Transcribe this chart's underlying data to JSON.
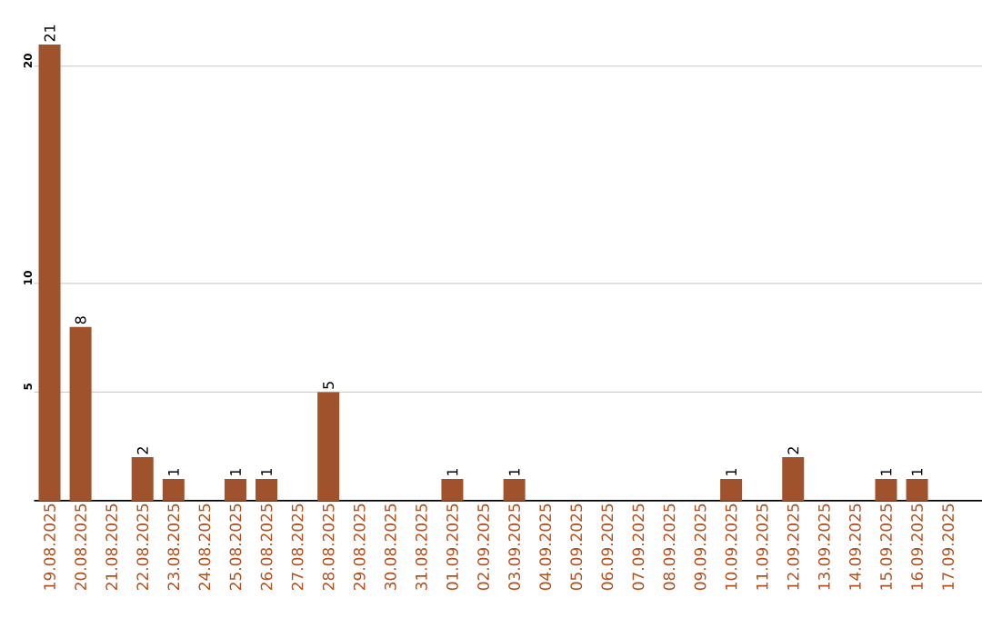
{
  "chart_data": {
    "type": "bar",
    "categories": [
      "19.08.2025",
      "20.08.2025",
      "21.08.2025",
      "22.08.2025",
      "23.08.2025",
      "24.08.2025",
      "25.08.2025",
      "26.08.2025",
      "27.08.2025",
      "28.08.2025",
      "29.08.2025",
      "30.08.2025",
      "31.08.2025",
      "01.09.2025",
      "02.09.2025",
      "03.09.2025",
      "04.09.2025",
      "05.09.2025",
      "06.09.2025",
      "07.09.2025",
      "08.09.2025",
      "09.09.2025",
      "10.09.2025",
      "11.09.2025",
      "12.09.2025",
      "13.09.2025",
      "14.09.2025",
      "15.09.2025",
      "16.09.2025",
      "17.09.2025"
    ],
    "values": [
      21,
      8,
      0,
      2,
      1,
      0,
      1,
      1,
      0,
      5,
      0,
      0,
      0,
      1,
      0,
      1,
      0,
      0,
      0,
      0,
      0,
      0,
      1,
      0,
      2,
      0,
      0,
      1,
      1,
      0
    ],
    "value_labels": [
      "21",
      "8",
      null,
      "2",
      "1",
      null,
      "1",
      "1",
      null,
      "5",
      null,
      null,
      null,
      "1",
      null,
      "1",
      null,
      null,
      null,
      null,
      null,
      null,
      "1",
      null,
      "2",
      null,
      null,
      "1",
      "1",
      null
    ],
    "color": "#a0522d",
    "ylim": [
      0,
      21
    ],
    "yticks": [
      5,
      10,
      20
    ],
    "grid": "y"
  }
}
